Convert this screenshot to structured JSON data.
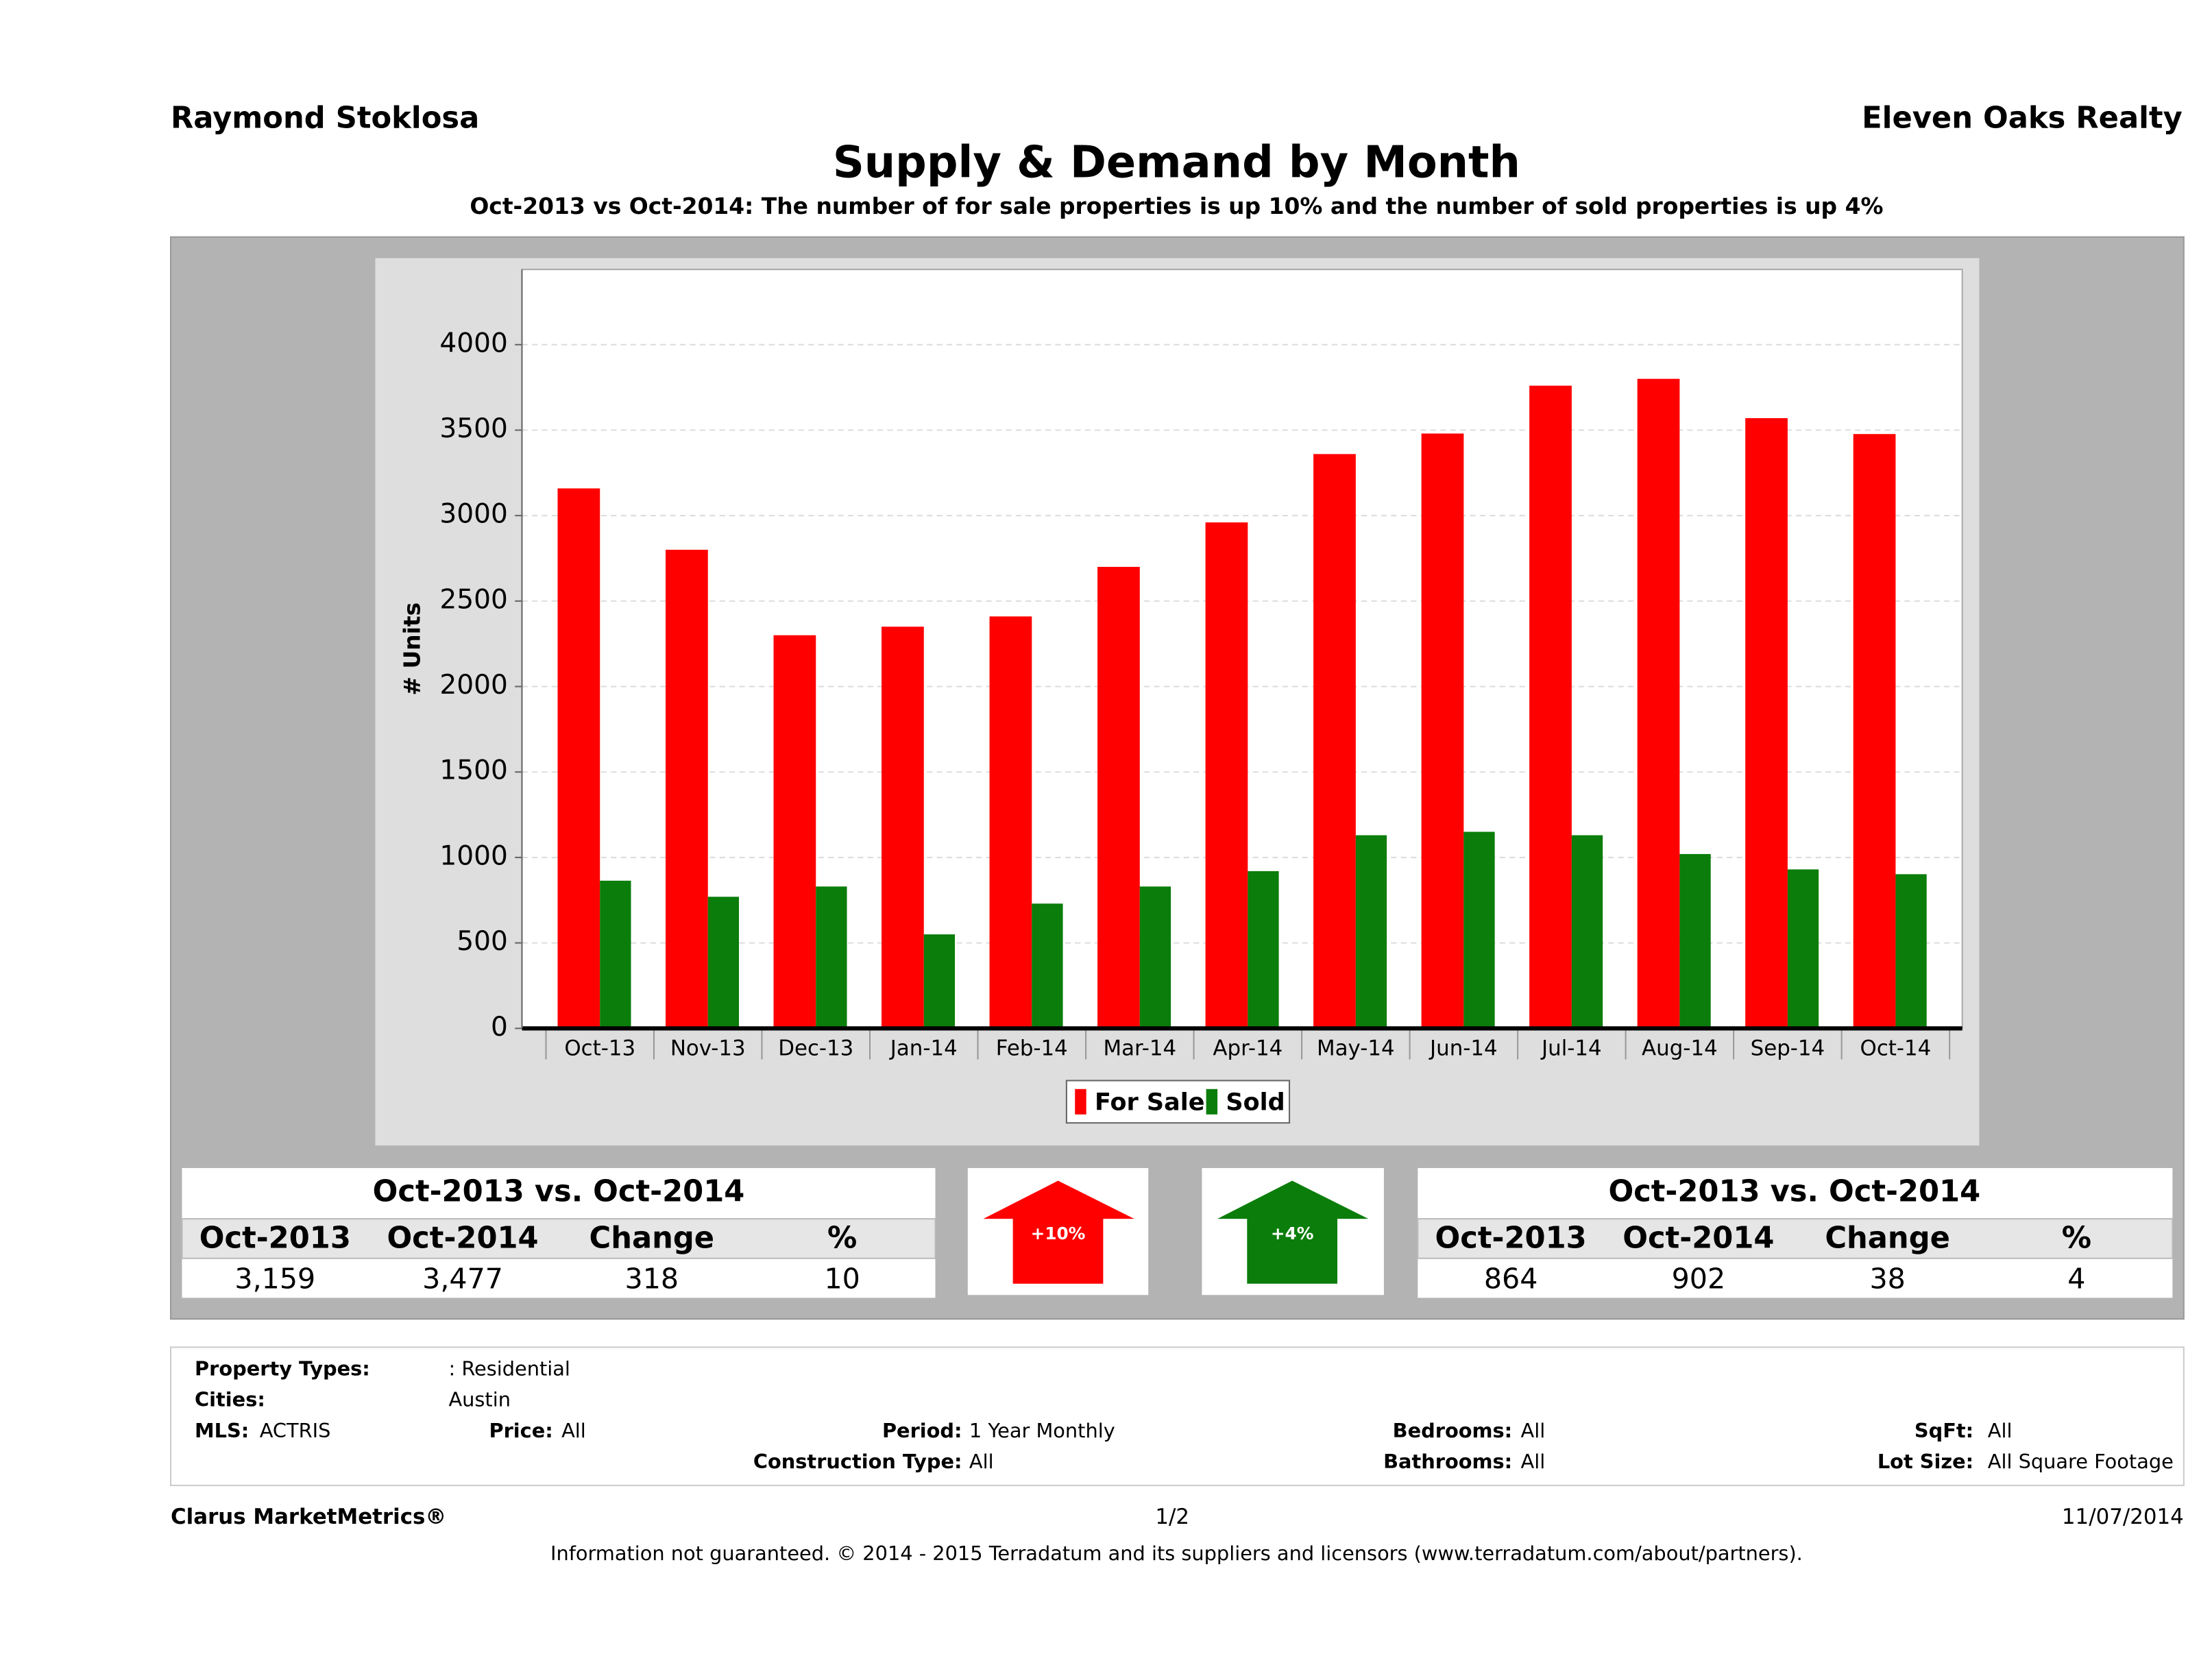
{
  "header": {
    "agent": "Raymond Stoklosa",
    "company": "Eleven Oaks Realty"
  },
  "chart_data": {
    "type": "bar",
    "title": "Supply & Demand by Month",
    "subtitle": "Oct-2013 vs Oct-2014: The number of for sale properties is up 10% and the number of sold properties is up 4%",
    "y_label": "# Units",
    "categories": [
      "Oct-13",
      "Nov-13",
      "Dec-13",
      "Jan-14",
      "Feb-14",
      "Mar-14",
      "Apr-14",
      "May-14",
      "Jun-14",
      "Jul-14",
      "Aug-14",
      "Sep-14",
      "Oct-14"
    ],
    "series": [
      {
        "name": "For Sale",
        "color": "#ff0000",
        "values": [
          3159,
          2800,
          2300,
          2350,
          2410,
          2700,
          2960,
          3360,
          3480,
          3760,
          3800,
          3570,
          3477
        ]
      },
      {
        "name": "Sold",
        "color": "#0a7d0a",
        "values": [
          864,
          770,
          830,
          550,
          730,
          830,
          920,
          1130,
          1150,
          1130,
          1020,
          930,
          902
        ]
      }
    ],
    "ylim": [
      0,
      4440
    ],
    "yticks": [
      0,
      500,
      1000,
      1500,
      2000,
      2500,
      3000,
      3500,
      4000
    ],
    "grid": true,
    "legend": "bottom"
  },
  "summary": {
    "for_sale": {
      "title": "Oct-2013 vs. Oct-2014",
      "columns": [
        "Oct-2013",
        "Oct-2014",
        "Change",
        "%"
      ],
      "row": [
        "3,159",
        "3,477",
        "318",
        "10"
      ],
      "badge": "+10%"
    },
    "sold": {
      "title": "Oct-2013 vs. Oct-2014",
      "columns": [
        "Oct-2013",
        "Oct-2014",
        "Change",
        "%"
      ],
      "row": [
        "864",
        "902",
        "38",
        "4"
      ],
      "badge": "+4%"
    }
  },
  "filters": [
    {
      "label": "Property Types:",
      "value": ": Residential"
    },
    {
      "label": "Cities:",
      "value": "Austin"
    },
    {
      "label": "MLS:",
      "value": "ACTRIS"
    },
    {
      "label": "Price:",
      "value": "All"
    },
    {
      "label": "Period:",
      "value": "1 Year Monthly"
    },
    {
      "label": "Bedrooms:",
      "value": "All"
    },
    {
      "label": "SqFt:",
      "value": "All"
    },
    {
      "label": "Construction Type:",
      "value": "All"
    },
    {
      "label": "Bathrooms:",
      "value": "All"
    },
    {
      "label": "Lot Size:",
      "value": "All Square Footage"
    }
  ],
  "footer": {
    "brand": "Clarus MarketMetrics®",
    "page": "1/2",
    "date": "11/07/2014",
    "disclaimer": "Information not guaranteed. © 2014 - 2015 Terradatum and its suppliers and licensors (www.terradatum.com/about/partners)."
  }
}
